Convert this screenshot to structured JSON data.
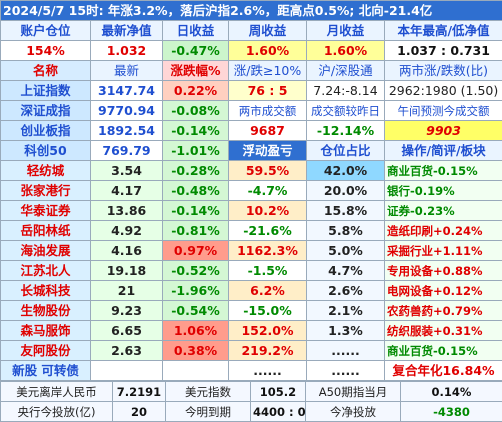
{
  "header": {
    "title": "2024/5/7   15时: 年涨3.2%，落后沪指2.6%，距高点0.5%; 北向-21.4亿"
  },
  "table": {
    "rows": [
      [
        "账户仓位",
        "最新净值",
        "日收益",
        "周收益",
        "月收益",
        "本年最高/低净值"
      ],
      [
        "154%",
        "1.032",
        "-0.47%",
        "1.60%",
        "1.60%",
        "1.037 : 0.731"
      ],
      [
        "名称",
        "最新",
        "涨跌幅%",
        "涨/跌≥10%",
        "沪/深股通",
        "两市涨/跌数(比)"
      ],
      [
        "上证指数",
        "3147.74",
        "0.22%",
        "76 : 5",
        "7.24:-8.14",
        "2962:1980 (1.50)"
      ],
      [
        "深证成指",
        "9770.94",
        "-0.08%",
        "两市成交额",
        "成交额较昨日",
        "午间预测今成交额"
      ],
      [
        "创业板指",
        "1892.54",
        "-0.14%",
        "9687",
        "-12.14%",
        "9903"
      ],
      [
        "科创50",
        "769.79",
        "-1.01%",
        "浮动盈亏",
        "仓位占比",
        "操作/简评/板块"
      ],
      [
        "轻纺城",
        "3.54",
        "-0.28%",
        "59.5%",
        "42.0%",
        "商业百货-0.15%"
      ],
      [
        "张家港行",
        "4.17",
        "-0.48%",
        "-4.7%",
        "20.0%",
        "银行-0.19%"
      ],
      [
        "华泰证券",
        "13.86",
        "-0.14%",
        "10.2%",
        "15.8%",
        "证券-0.23%"
      ],
      [
        "岳阳林纸",
        "4.92",
        "-0.81%",
        "-21.6%",
        "5.8%",
        "造纸印刷+0.24%"
      ],
      [
        "海油发展",
        "4.16",
        "0.97%",
        "1162.3%",
        "5.0%",
        "采掘行业+1.11%"
      ],
      [
        "江苏北人",
        "19.18",
        "-0.52%",
        "-1.5%",
        "4.7%",
        "专用设备+0.88%"
      ],
      [
        "长城科技",
        "21",
        "-1.96%",
        "6.2%",
        "2.6%",
        "电网设备+0.12%"
      ],
      [
        "生物股份",
        "9.23",
        "-0.54%",
        "-15.0%",
        "2.1%",
        "农药兽药+0.79%"
      ],
      [
        "森马服饰",
        "6.65",
        "1.06%",
        "152.0%",
        "1.3%",
        "纺织服装+0.31%"
      ],
      [
        "友阿股份",
        "2.63",
        "0.38%",
        "219.2%",
        "......",
        "商业百货-0.15%"
      ],
      [
        "新股 可转债",
        "",
        "",
        "......",
        "......",
        "复合年化16.84%"
      ]
    ]
  },
  "footer": {
    "rows": [
      [
        "美元离岸人民币",
        "7.2191",
        "美元指数",
        "105.2",
        "A50期指当月",
        "0.14%"
      ],
      [
        "央行今投放(亿)",
        "20",
        "今明到期",
        "4400 : 0",
        "今净投放",
        "-4380"
      ]
    ]
  }
}
